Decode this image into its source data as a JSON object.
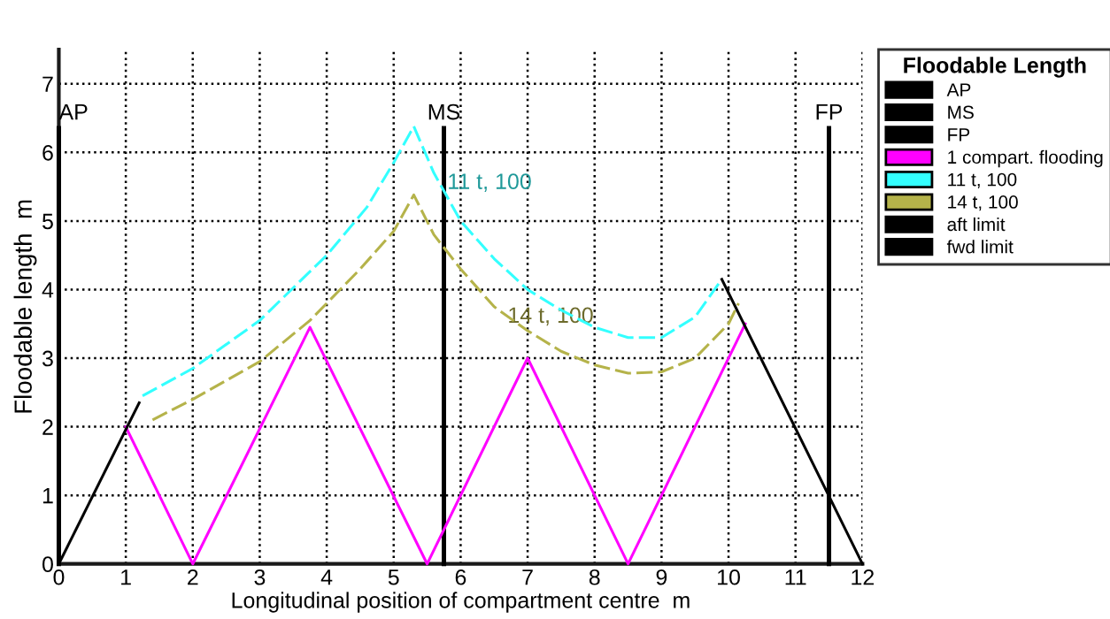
{
  "chart_data": {
    "type": "line",
    "xlabel": "Longitudinal position of compartment centre  m",
    "ylabel": "Floodable length  m",
    "legend_title": "Floodable Length",
    "xlim": [
      0,
      12
    ],
    "ylim": [
      0,
      7.5
    ],
    "xticks": [
      0,
      1,
      2,
      3,
      4,
      5,
      6,
      7,
      8,
      9,
      10,
      11,
      12
    ],
    "yticks": [
      0,
      1,
      2,
      3,
      4,
      5,
      6,
      7
    ],
    "grid": true,
    "legend": "right",
    "marker": "none",
    "ref_lines": [
      {
        "axis": "x",
        "value": 0,
        "label": "AP",
        "color": "#000000"
      },
      {
        "axis": "x",
        "value": 5.75,
        "label": "MS",
        "color": "#000000"
      },
      {
        "axis": "x",
        "value": 11.5,
        "label": "FP",
        "color": "#000000"
      }
    ],
    "series": [
      {
        "name": "1 compart. flooding",
        "color": "#ff00ff",
        "x": [
          1,
          2,
          3.75,
          5.5,
          7,
          8.5,
          10.25
        ],
        "values": [
          2,
          0,
          3.45,
          0,
          3,
          0,
          3.5
        ]
      },
      {
        "name": "11 t, 100",
        "color": "#33ffff",
        "line_style": "dashed",
        "x": [
          1.25,
          2,
          3,
          4,
          4.6,
          5,
          5.3,
          5.6,
          6,
          6.5,
          7,
          7.5,
          8,
          8.5,
          9,
          9.5,
          9.9
        ],
        "values": [
          2.45,
          2.85,
          3.55,
          4.5,
          5.2,
          5.85,
          6.38,
          5.7,
          5.0,
          4.45,
          4.0,
          3.7,
          3.45,
          3.3,
          3.3,
          3.6,
          4.15
        ]
      },
      {
        "name": "14 t, 100",
        "color": "#b5b34a",
        "line_style": "dashed",
        "x": [
          1.4,
          2,
          3,
          3.75,
          4.5,
          5,
          5.3,
          5.6,
          6,
          6.5,
          7,
          7.5,
          8,
          8.5,
          9,
          9.5,
          10,
          10.15
        ],
        "values": [
          2.1,
          2.4,
          2.95,
          3.55,
          4.3,
          4.85,
          5.38,
          4.8,
          4.3,
          3.75,
          3.4,
          3.1,
          2.9,
          2.78,
          2.8,
          3.0,
          3.5,
          3.8
        ]
      },
      {
        "name": "aft limit",
        "color": "#000000",
        "x": [
          0,
          1.2
        ],
        "values": [
          0,
          2.35
        ]
      },
      {
        "name": "fwd limit",
        "color": "#000000",
        "x": [
          9.9,
          12
        ],
        "values": [
          4.15,
          0
        ]
      }
    ],
    "annotations": [
      {
        "text": "11 t, 100",
        "x": 5.6,
        "y": 5.7
      },
      {
        "text": "14 t, 100",
        "x": 6.5,
        "y": 3.75
      }
    ]
  }
}
